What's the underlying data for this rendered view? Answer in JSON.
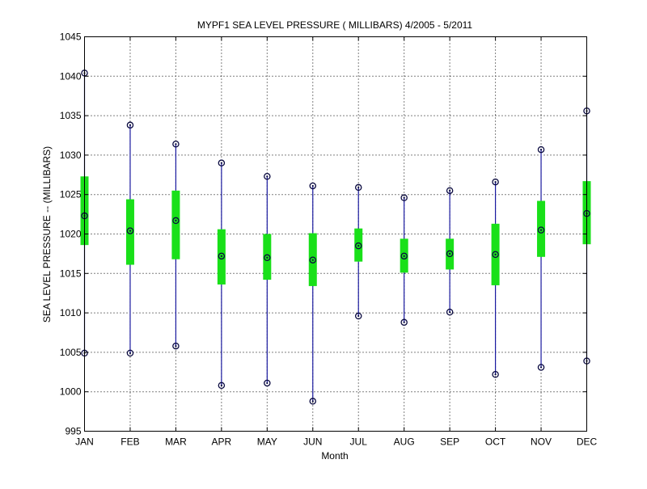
{
  "chart_data": {
    "type": "box",
    "title": "MYPF1  SEA LEVEL PRESSURE ( MILLIBARS) 4/2005 - 5/2011",
    "xlabel": "Month",
    "ylabel": "SEA LEVEL PRESSURE -- (MILLIBARS)",
    "ylim": [
      995,
      1045
    ],
    "yticks": [
      995,
      1000,
      1005,
      1010,
      1015,
      1020,
      1025,
      1030,
      1035,
      1040,
      1045
    ],
    "grid": true,
    "categories": [
      "JAN",
      "FEB",
      "MAR",
      "APR",
      "MAY",
      "JUN",
      "JUL",
      "AUG",
      "SEP",
      "OCT",
      "NOV",
      "DEC"
    ],
    "min": [
      1004.9,
      1004.9,
      1005.8,
      1000.8,
      1001.1,
      998.8,
      1009.6,
      1008.8,
      1010.1,
      1002.2,
      1003.1,
      1003.9
    ],
    "box_low": [
      1018.6,
      1016.1,
      1016.8,
      1013.6,
      1014.2,
      1013.4,
      1016.5,
      1015.1,
      1015.5,
      1013.5,
      1017.1,
      1018.7
    ],
    "mean": [
      1022.3,
      1020.4,
      1021.7,
      1017.2,
      1017.0,
      1016.7,
      1018.5,
      1017.2,
      1017.5,
      1017.4,
      1020.5,
      1022.6
    ],
    "box_high": [
      1027.3,
      1024.4,
      1025.5,
      1020.6,
      1020.0,
      1020.1,
      1020.7,
      1019.4,
      1019.4,
      1021.3,
      1024.2,
      1026.7
    ],
    "max": [
      1040.4,
      1033.8,
      1031.4,
      1029.0,
      1027.3,
      1026.1,
      1025.9,
      1024.6,
      1025.5,
      1026.6,
      1030.7,
      1035.6
    ],
    "colors": {
      "whisker": "#1a1aa0",
      "box": "#19e019",
      "marker": "#0a0a40"
    }
  }
}
